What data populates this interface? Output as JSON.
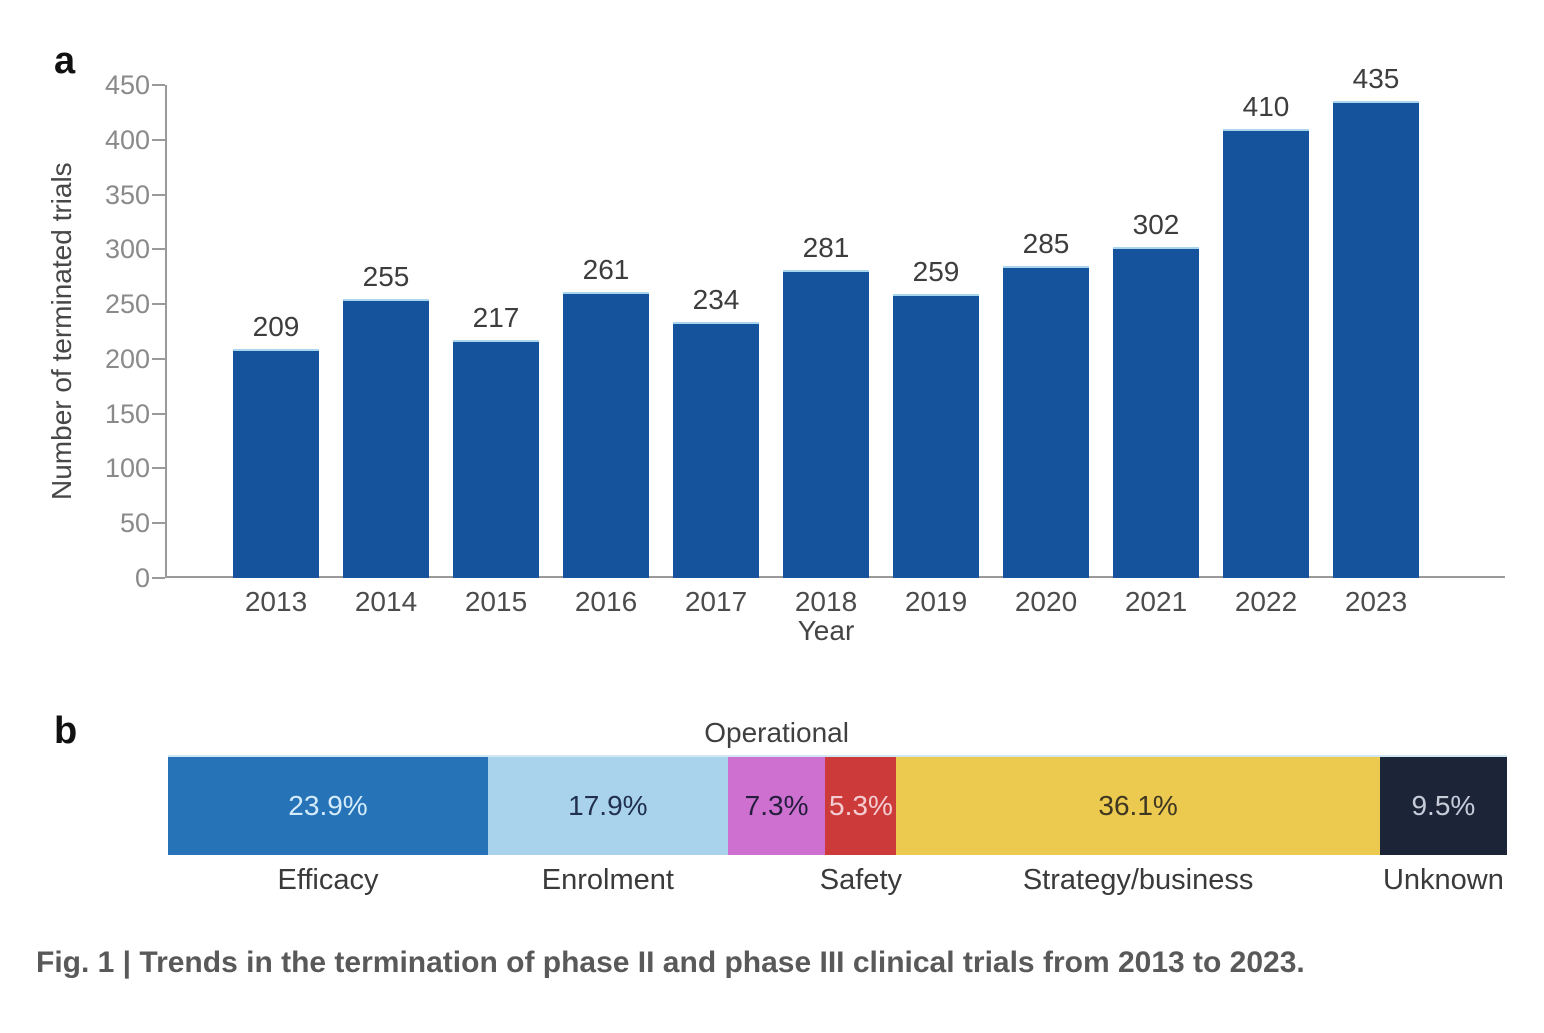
{
  "panel_a": {
    "label": "a"
  },
  "panel_b": {
    "label": "b"
  },
  "caption": "Fig. 1 | Trends in the termination of phase II and phase III clinical trials from 2013 to 2023.",
  "colors": {
    "axis": "#9a9a9a",
    "tick_text": "#8a8a8a",
    "value_text": "#3d3d3d",
    "year_text": "#4c4c4c",
    "axis_title_text": "#474747",
    "bar_blue": "#15549c",
    "bar_top_edge": "#a9d6ee",
    "caption_text": "#595959"
  },
  "chart_data": [
    {
      "type": "bar",
      "categories": [
        "2013",
        "2014",
        "2015",
        "2016",
        "2017",
        "2018",
        "2019",
        "2020",
        "2021",
        "2022",
        "2023"
      ],
      "values": [
        209,
        255,
        217,
        261,
        234,
        281,
        259,
        285,
        302,
        410,
        435
      ],
      "xlabel": "Year",
      "ylabel": "Number of terminated trials",
      "ylim": [
        0,
        450
      ],
      "ytick_step": 50,
      "ytick_labels": [
        "0",
        "50",
        "100",
        "150",
        "200",
        "250",
        "300",
        "350",
        "400",
        "450"
      ],
      "bar_color": "#15549c",
      "grid": false,
      "legend": null
    },
    {
      "type": "bar",
      "stacked": true,
      "orientation": "horizontal",
      "segments": [
        {
          "label": "Efficacy",
          "value": 23.9,
          "display": "23.9%",
          "color": "#2673b7",
          "text_color": "#d3ebfa",
          "label_position": "below"
        },
        {
          "label": "Enrolment",
          "value": 17.9,
          "display": "17.9%",
          "color": "#a9d3ec",
          "text_color": "#21304e",
          "label_position": "below"
        },
        {
          "label": "Operational",
          "value": 7.3,
          "display": "7.3%",
          "color": "#cd70d0",
          "text_color": "#251d3e",
          "label_position": "above"
        },
        {
          "label": "Safety",
          "value": 5.3,
          "display": "5.3%",
          "color": "#cc3b39",
          "text_color": "#f3cdd1",
          "label_position": "below"
        },
        {
          "label": "Strategy/business",
          "value": 36.1,
          "display": "36.1%",
          "color": "#ecc94f",
          "text_color": "#3e3722",
          "label_position": "below"
        },
        {
          "label": "Unknown",
          "value": 9.5,
          "display": "9.5%",
          "color": "#1c2438",
          "text_color": "#c6ccd8",
          "label_position": "below"
        }
      ]
    }
  ]
}
